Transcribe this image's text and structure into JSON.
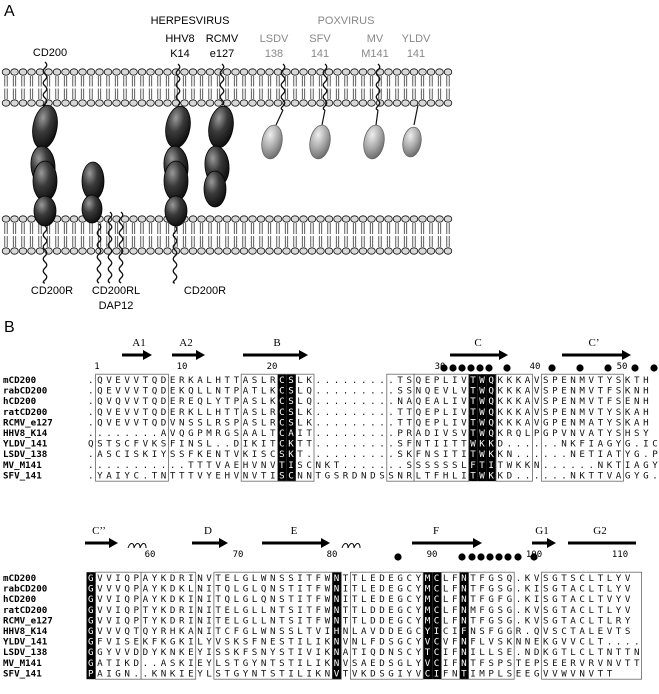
{
  "panels": {
    "a": "A",
    "b": "B"
  },
  "panelA": {
    "group_herpes": "HERPESVIRUS",
    "group_pox": "POXVIRUS",
    "top_labels": [
      {
        "line1": "CD200",
        "line2": ""
      },
      {
        "line1": "HHV8",
        "line2": "K14"
      },
      {
        "line1": "RCMV",
        "line2": "e127"
      },
      {
        "line1": "LSDV",
        "line2": "138"
      },
      {
        "line1": "SFV",
        "line2": "141"
      },
      {
        "line1": "MV",
        "line2": "M141"
      },
      {
        "line1": "YLDV",
        "line2": "141"
      }
    ],
    "bottom_labels": [
      {
        "line1": "CD200R",
        "line2": ""
      },
      {
        "line1": "CD200RL",
        "line2": "DAP12"
      },
      {
        "line1": "CD200R",
        "line2": ""
      }
    ]
  },
  "alignment": {
    "block1": {
      "ss_labels": [
        "A1",
        "A2",
        "B",
        "C",
        "C’"
      ],
      "ruler": [
        "1",
        "10",
        "20",
        "30",
        "40",
        "50"
      ],
      "rows": [
        {
          "name": "mCD200",
          "seq": ".QVEVVTQDERKALHTTASLRCSLK.........TSQEPLIVTWQKKKAVSPENMVTYSKTH"
        },
        {
          "name": "rabCD200",
          "seq": ".QEVVVTQDEKQLLNTPATLKCSLQ.........SSNQEVLVTWQKKKAVSPENMVTFSKNH"
        },
        {
          "name": "hCD200",
          "seq": ".QVQVVTQDEREQLYTPASLKCSLQ.........NAQEALIVTWQKKKAVSPENMVTFSENH"
        },
        {
          "name": "ratCD200",
          "seq": ".QVEVVTQDERKLLHTTASLRCSLK.........TTQEPLIVTWQKKKAVSPENMVTYSKAH"
        },
        {
          "name": "RCMV_e127",
          "seq": ".QVEVVTQDVNSSLRSPASLRCSLK.........TTQEPLIVTWQKKKAVGPENMATYSKAH"
        },
        {
          "name": "HHV8_K14",
          "seq": "........AVQGPMRGSAALTCAIT.........PRADIVSVTWQKRQLPGPVNVATYSHSY"
        },
        {
          "name": "YLDV_141",
          "seq": "QSTSCFVKSFINSL..DIKITCKTT.........SFNTIITTWKKD......NKFIAGYG.IC"
        },
        {
          "name": "LSDV_138",
          "seq": ".ASCISKIYSSFKENTVKISCSKT..........SKFNSITITWKKN......NETIATYG.PH"
        },
        {
          "name": "MV_M141",
          "seq": "...........TTTVAEHVNVTISCNKT.......SSSSSSLFTITWKKN......NKTIAGYG.PS"
        },
        {
          "name": "SFV_141",
          "seq": ".YAIYC.TNTTTVYEHVNVTISCNNTGSRDNDSSNRLTFHLITWKKD......NKTTVAGYG.PS"
        }
      ]
    },
    "block2": {
      "ss_labels": [
        "C’’",
        "D",
        "E",
        "F",
        "G1",
        "G2"
      ],
      "ruler": [
        "60",
        "70",
        "80",
        "90",
        "100",
        "110"
      ],
      "rows": [
        {
          "name": "mCD200",
          "seq": "GVVIQPAYKDRINVTELGLWNSSITFWNTTLEDEGCYMCLFNTFGSQ.KVSGTSCLTLYV"
        },
        {
          "name": "rabCD200",
          "seq": "GVVVQPAYKDKLNITQLGLQNSTITFWNITLEDEGCYMCLFNTFGSG.KISGTACLTLYV"
        },
        {
          "name": "hCD200",
          "seq": "GVVIQPAYKDKINITQLGLQNSTITFWNITLEDEGCYMCLFNTFGFG.KISGTACLTVYV"
        },
        {
          "name": "ratCD200",
          "seq": "GVVIQPTYKDRINITELGLLNTSITFWNTTLDDEGCYMCLFNMFGSG.KVSGTACLTLYV"
        },
        {
          "name": "RCMV_e127",
          "seq": "GVVIQPTYKDRINITELGLLNTSITFWNTTLDDEGCYMCLFNTFGSG.KVSGTACLTLRY"
        },
        {
          "name": "HHV8_K14",
          "seq": "GVVVQTQYRHKANITCFGLWNSSLTVIHNLAVDDEGCYICIFNSFGGR.QVSCTALEVTS"
        },
        {
          "name": "YLDV_141",
          "seq": "GFVISEKFKGKILYVSKSFNESTILIKNVNLFDSGCYVCVFNFLVSKNNEKGVVCLT...."
        },
        {
          "name": "LSDV_138",
          "seq": "GGYVVDDYKNKEYISSKFSNYSTIVIKNATIQDNSCYTCIFNILLSE.NDKGTLCLTNTTN"
        },
        {
          "name": "MV_M141",
          "seq": "GATIKD..ASKIEYLSTGYNTSTILIKNVSAEDSGLYVCIFNTFSPSTEPSEERVRVNVTT"
        },
        {
          "name": "SFV_141",
          "seq": "PAIGN..KNKIEYLSTGYNTSTILIKNVTVKDSGIYVCIFNTIMPLSEEGVVWVNVTT"
        }
      ]
    }
  }
}
